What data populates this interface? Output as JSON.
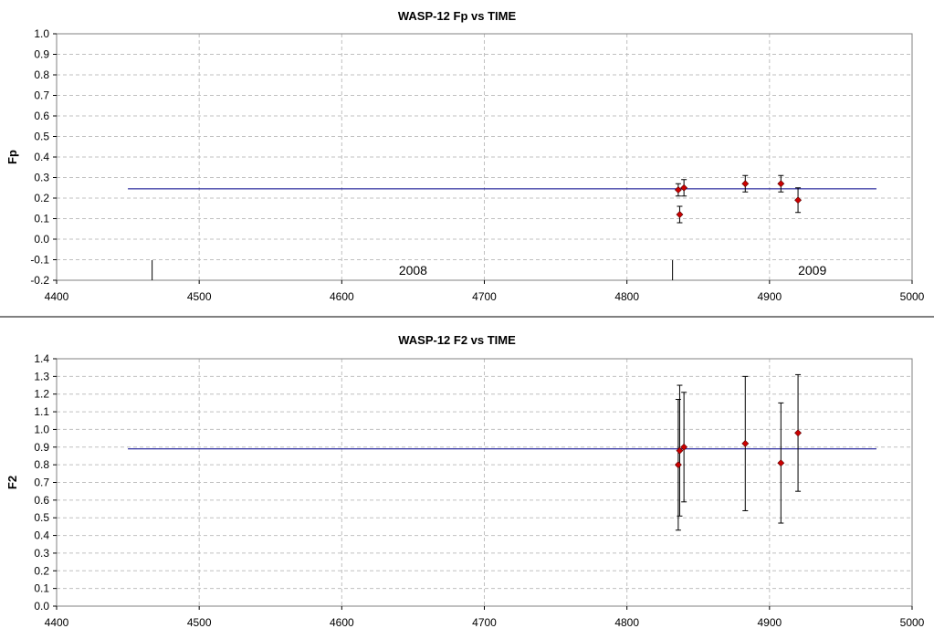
{
  "chart_data": [
    {
      "type": "scatter",
      "title": "WASP-12 Fp vs TIME",
      "xlabel": "",
      "ylabel": "Fp",
      "xlim": [
        4400,
        5000
      ],
      "ylim": [
        -0.2,
        1.0
      ],
      "xticks": [
        4400,
        4500,
        4600,
        4700,
        4800,
        4900,
        5000
      ],
      "yticks": [
        -0.2,
        -0.1,
        0.0,
        0.1,
        0.2,
        0.3,
        0.4,
        0.5,
        0.6,
        0.7,
        0.8,
        0.9,
        1.0
      ],
      "ytick_labels": [
        "-0.2",
        "-0.1",
        "0.0",
        "0.1",
        "0.2",
        "0.3",
        "0.4",
        "0.5",
        "0.6",
        "0.7",
        "0.8",
        "0.9",
        "1.0"
      ],
      "grid": true,
      "colors": {
        "points": "#cc0000",
        "mean_line": "#00008b",
        "grid": "#c0c0c0",
        "errorbar": "#000000"
      },
      "points": [
        {
          "x": 4836,
          "y": 0.24,
          "err": 0.03
        },
        {
          "x": 4837,
          "y": 0.12,
          "err": 0.04
        },
        {
          "x": 4840,
          "y": 0.25,
          "err": 0.04
        },
        {
          "x": 4883,
          "y": 0.27,
          "err": 0.04
        },
        {
          "x": 4908,
          "y": 0.27,
          "err": 0.04
        },
        {
          "x": 4920,
          "y": 0.19,
          "err": 0.06
        }
      ],
      "mean_line": {
        "y": 0.245,
        "x_start": 4450,
        "x_end": 4975
      },
      "year_markers": [
        4467,
        4832
      ],
      "year_labels": [
        {
          "text": "2008",
          "x": 4650
        },
        {
          "text": "2009",
          "x": 4930
        }
      ]
    },
    {
      "type": "scatter",
      "title": "WASP-12 F2 vs TIME",
      "xlabel": "",
      "ylabel": "F2",
      "xlim": [
        4400,
        5000
      ],
      "ylim": [
        0.0,
        1.4
      ],
      "xticks": [
        4400,
        4500,
        4600,
        4700,
        4800,
        4900,
        5000
      ],
      "yticks": [
        0.0,
        0.1,
        0.2,
        0.3,
        0.4,
        0.5,
        0.6,
        0.7,
        0.8,
        0.9,
        1.0,
        1.1,
        1.2,
        1.3,
        1.4
      ],
      "ytick_labels": [
        "0.0",
        "0.1",
        "0.2",
        "0.3",
        "0.4",
        "0.5",
        "0.6",
        "0.7",
        "0.8",
        "0.9",
        "1.0",
        "1.1",
        "1.2",
        "1.3",
        "1.4"
      ],
      "grid": true,
      "colors": {
        "points": "#cc0000",
        "mean_line": "#00008b",
        "grid": "#c0c0c0",
        "errorbar": "#000000"
      },
      "points": [
        {
          "x": 4836,
          "y": 0.8,
          "err": 0.37
        },
        {
          "x": 4837,
          "y": 0.88,
          "err": 0.37
        },
        {
          "x": 4840,
          "y": 0.9,
          "err": 0.31
        },
        {
          "x": 4883,
          "y": 0.92,
          "err": 0.38
        },
        {
          "x": 4908,
          "y": 0.81,
          "err": 0.34
        },
        {
          "x": 4920,
          "y": 0.98,
          "err": 0.33
        }
      ],
      "mean_line": {
        "y": 0.89,
        "x_start": 4450,
        "x_end": 4975
      },
      "year_markers": [],
      "year_labels": []
    }
  ]
}
